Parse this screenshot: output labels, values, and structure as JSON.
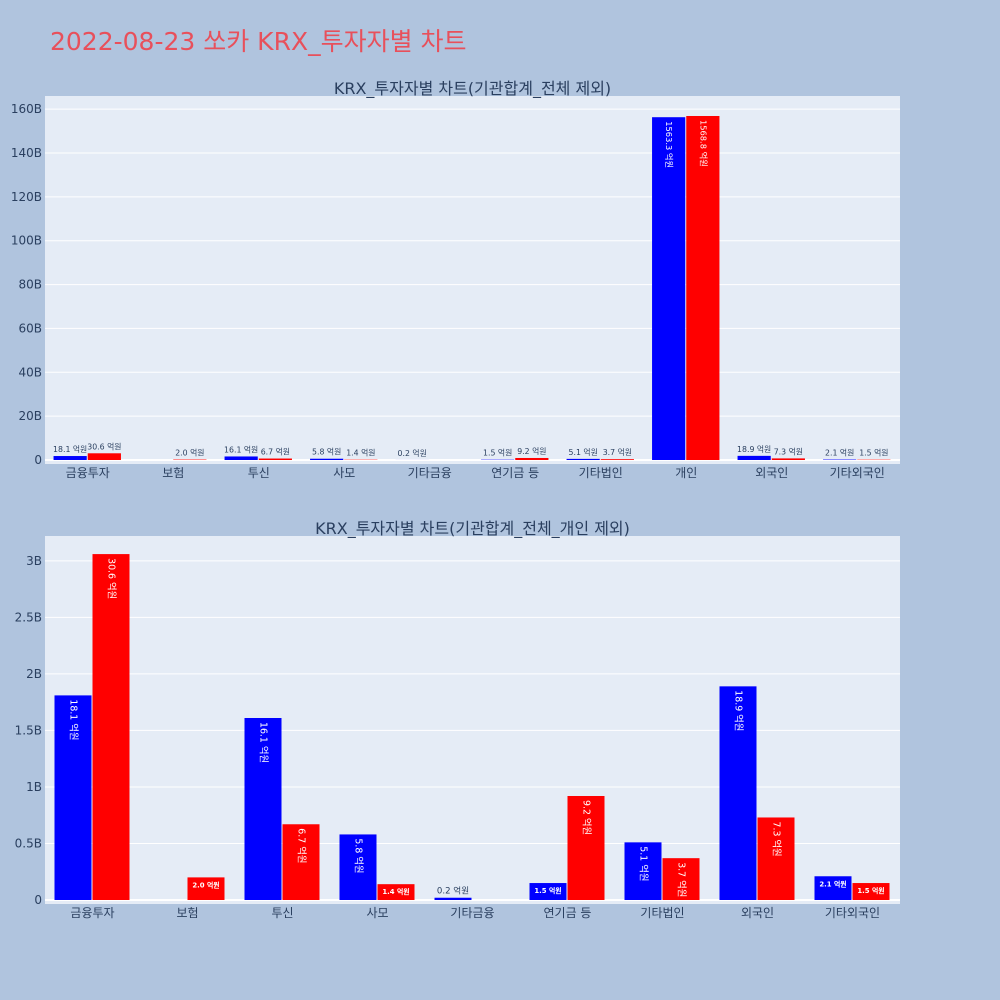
{
  "page": {
    "title": "2022-08-23 쏘카 KRX_투자자별 차트",
    "background": "#b0c4de",
    "title_color": "#e8505b"
  },
  "chart_data": [
    {
      "type": "bar",
      "title": "KRX_투자자별 차트(기관합계_전체 제외)",
      "categories": [
        "금융투자",
        "보험",
        "투신",
        "사모",
        "기타금융",
        "연기금 등",
        "기타법인",
        "개인",
        "외국인",
        "기타외국인"
      ],
      "series": [
        {
          "color": "#0000ff",
          "values": [
            1.81,
            null,
            1.61,
            0.58,
            0.02,
            0.15,
            0.51,
            156.33,
            1.89,
            0.21
          ],
          "labels": [
            "18.1 억원",
            "",
            "16.1 억원",
            "5.8 억원",
            "0.2 억원",
            "1.5 억원",
            "5.1 억원",
            "1563.3 억원",
            "18.9 억원",
            "2.1 억원"
          ]
        },
        {
          "color": "#ff0000",
          "values": [
            3.06,
            0.2,
            0.67,
            0.14,
            null,
            0.92,
            0.37,
            156.88,
            0.73,
            0.15
          ],
          "labels": [
            "30.6 억원",
            "2.0 억원",
            "6.7 억원",
            "1.4 억원",
            "",
            "9.2 억원",
            "3.7 억원",
            "1568.8 억원",
            "7.3 억원",
            "1.5 억원"
          ]
        }
      ],
      "y_ticks": [
        0,
        20,
        40,
        60,
        80,
        100,
        120,
        140,
        160
      ],
      "y_tick_labels": [
        "0",
        "20B",
        "40B",
        "60B",
        "80B",
        "100B",
        "120B",
        "140B",
        "160B"
      ],
      "ylim": [
        0,
        166
      ],
      "grid": true
    },
    {
      "type": "bar",
      "title": "KRX_투자자별 차트(기관합계_전체_개인 제외)",
      "categories": [
        "금융투자",
        "보험",
        "투신",
        "사모",
        "기타금융",
        "연기금 등",
        "기타법인",
        "외국인",
        "기타외국인"
      ],
      "series": [
        {
          "color": "#0000ff",
          "values": [
            1.81,
            null,
            1.61,
            0.58,
            0.02,
            0.15,
            0.51,
            1.89,
            0.21
          ],
          "labels": [
            "18.1 억원",
            "",
            "16.1 억원",
            "5.8 억원",
            "0.2 억원",
            "1.5 억원",
            "5.1 억원",
            "18.9 억원",
            "2.1 억원"
          ]
        },
        {
          "color": "#ff0000",
          "values": [
            3.06,
            0.2,
            0.67,
            0.14,
            null,
            0.92,
            0.37,
            0.73,
            0.15
          ],
          "labels": [
            "30.6 억원",
            "2.0 억원",
            "6.7 억원",
            "1.4 억원",
            "",
            "9.2 억원",
            "3.7 억원",
            "7.3 억원",
            "1.5 억원"
          ]
        }
      ],
      "y_ticks": [
        0,
        0.5,
        1,
        1.5,
        2,
        2.5,
        3
      ],
      "y_tick_labels": [
        "0",
        "0.5B",
        "1B",
        "1.5B",
        "2B",
        "2.5B",
        "3B"
      ],
      "ylim": [
        0,
        3.22
      ],
      "grid": true
    }
  ]
}
